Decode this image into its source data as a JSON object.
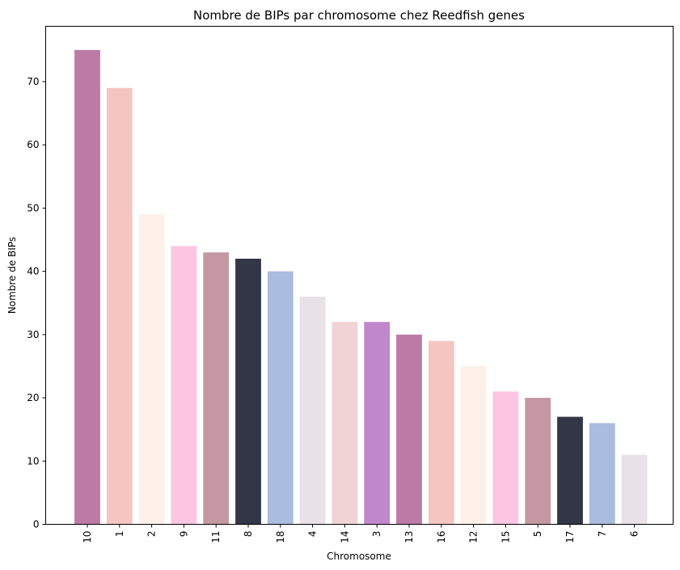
{
  "chart_data": {
    "type": "bar",
    "title": "Nombre de BIPs par chromosome chez Reedfish genes",
    "xlabel": "Chromosome",
    "ylabel": "Nombre de BIPs",
    "categories": [
      "10",
      "1",
      "2",
      "9",
      "11",
      "8",
      "18",
      "4",
      "14",
      "3",
      "13",
      "16",
      "12",
      "15",
      "5",
      "17",
      "7",
      "6"
    ],
    "values": [
      75,
      69,
      49,
      44,
      43,
      42,
      40,
      36,
      32,
      32,
      30,
      29,
      25,
      21,
      20,
      17,
      16,
      11
    ],
    "colors": [
      "#bd7aa6",
      "#f5c6c1",
      "#fdf0e8",
      "#fcc6e3",
      "#c497a3",
      "#333646",
      "#aabcdf",
      "#e8e1e5",
      "#f1d3d6",
      "#c187cb",
      "#bd7aa6",
      "#f5c6c1",
      "#fdf0e8",
      "#fcc6e3",
      "#c497a3",
      "#333646",
      "#aabcdf",
      "#e8e1e5"
    ],
    "ylim": [
      0,
      78.75
    ],
    "yticks": [
      0,
      10,
      20,
      30,
      40,
      50,
      60,
      70
    ],
    "grid": false,
    "legend": "none"
  }
}
